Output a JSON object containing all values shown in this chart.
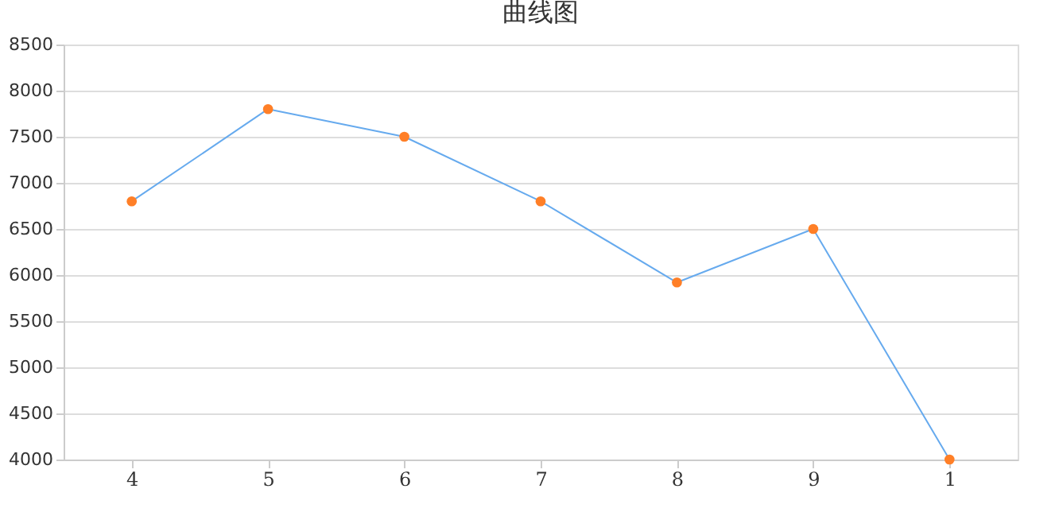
{
  "chart_data": {
    "type": "line",
    "title": "曲线图",
    "categories": [
      "4",
      "5",
      "6",
      "7",
      "8",
      "9",
      "1"
    ],
    "series": [
      {
        "color": "#66aaee",
        "colors": [
          "#ff7f27",
          "#ff7f27",
          "#ff7f27",
          "#ff7f27",
          "#ff7f27",
          "#ff7f27",
          "#ff7f27"
        ],
        "values": [
          6800,
          7800,
          7500,
          6800,
          5920,
          6500,
          4000
        ]
      }
    ],
    "ylim": [
      4000,
      8500
    ],
    "yticks": [
      4000,
      4500,
      5000,
      5500,
      6000,
      6500,
      7000,
      7500,
      8000,
      8500
    ],
    "grid": "y",
    "marker": "circle",
    "line_style": "solid"
  }
}
